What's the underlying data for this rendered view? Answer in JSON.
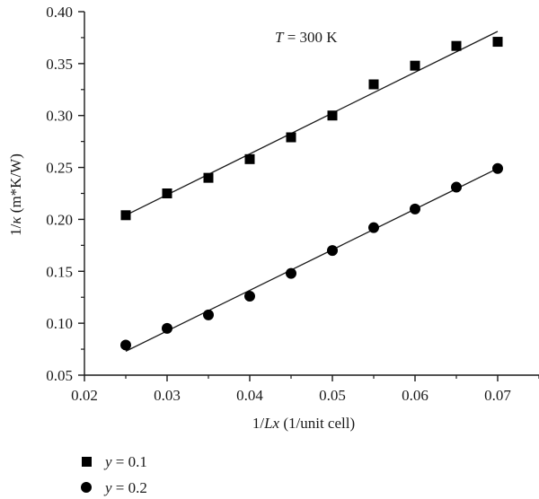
{
  "chart_data": {
    "type": "scatter",
    "annotation": {
      "prefix": "T",
      "rest": " = 300 K"
    },
    "xlabel": {
      "prefix": "1/",
      "italic": "Lx",
      "suffix": " (1/unit cell)"
    },
    "ylabel": {
      "prefix": "1/",
      "italic": "κ",
      "suffix": " (m*K/W)"
    },
    "xlim": [
      0.02,
      0.075
    ],
    "ylim": [
      0.05,
      0.4
    ],
    "x_ticks": [
      0.02,
      0.03,
      0.04,
      0.05,
      0.06,
      0.07
    ],
    "x_tick_labels": [
      "0.02",
      "0.03",
      "0.04",
      "0.05",
      "0.06",
      "0.07"
    ],
    "y_ticks": [
      0.05,
      0.1,
      0.15,
      0.2,
      0.25,
      0.3,
      0.35,
      0.4
    ],
    "y_tick_labels": [
      "0.05",
      "0.10",
      "0.15",
      "0.20",
      "0.25",
      "0.30",
      "0.35",
      "0.40"
    ],
    "grid": false,
    "legend_position": "bottom-left, below plot",
    "series": [
      {
        "legend": {
          "italic": "y",
          "rest": " = 0.1"
        },
        "marker": "square",
        "x": [
          0.025,
          0.03,
          0.035,
          0.04,
          0.045,
          0.05,
          0.055,
          0.06,
          0.065,
          0.07
        ],
        "y": [
          0.204,
          0.225,
          0.24,
          0.258,
          0.279,
          0.3,
          0.33,
          0.348,
          0.367,
          0.371
        ],
        "fit_line": {
          "x": [
            0.025,
            0.07
          ],
          "y": [
            0.204,
            0.381
          ]
        }
      },
      {
        "legend": {
          "italic": "y",
          "rest": " = 0.2"
        },
        "marker": "circle",
        "x": [
          0.025,
          0.03,
          0.035,
          0.04,
          0.045,
          0.05,
          0.055,
          0.06,
          0.065,
          0.07
        ],
        "y": [
          0.079,
          0.095,
          0.108,
          0.126,
          0.148,
          0.17,
          0.192,
          0.21,
          0.231,
          0.249
        ],
        "fit_line": {
          "x": [
            0.025,
            0.07
          ],
          "y": [
            0.073,
            0.249
          ]
        }
      }
    ],
    "colors": {
      "marker": "#000000",
      "line": "#1a1a1a",
      "axis": "#1a1a1a"
    }
  }
}
